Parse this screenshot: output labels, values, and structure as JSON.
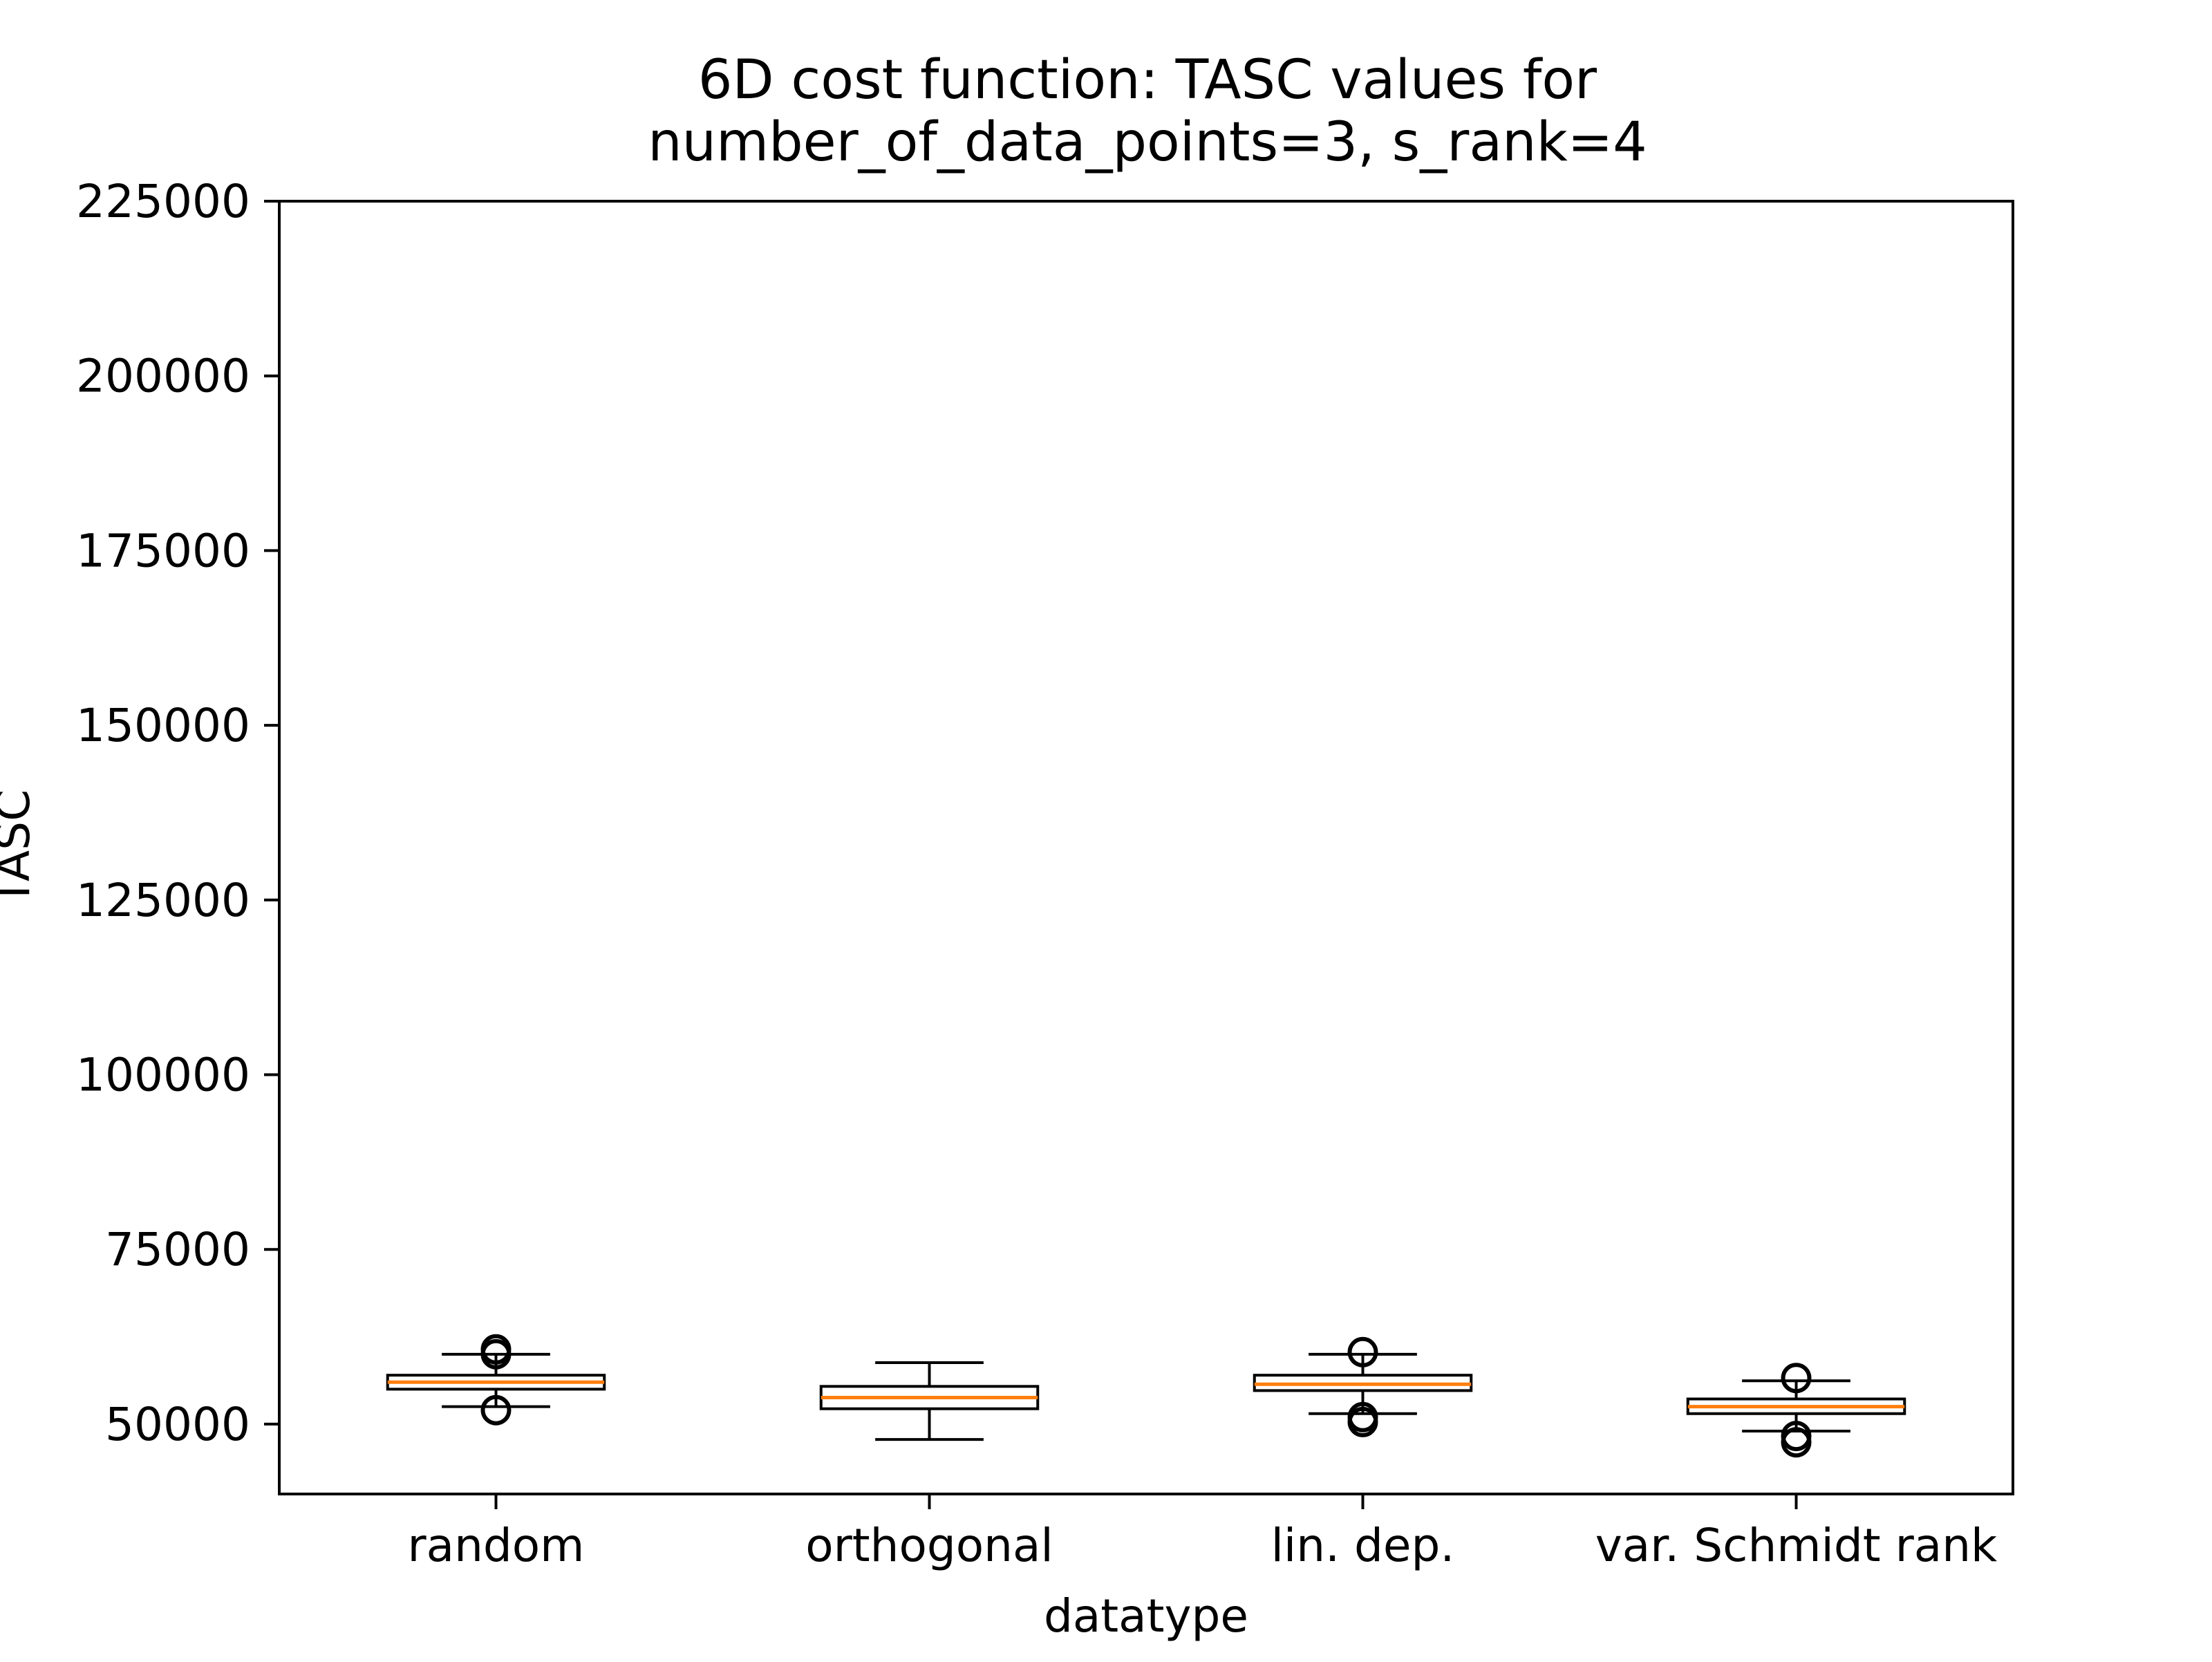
{
  "chart_data": {
    "type": "box",
    "title_line1": "6D cost function: TASC values for",
    "title_line2": "number_of_data_points=3, s_rank=4",
    "xlabel": "datatype",
    "ylabel": "TASC",
    "ylim": [
      40000,
      225000
    ],
    "yticks": [
      50000,
      75000,
      100000,
      125000,
      150000,
      175000,
      200000,
      225000
    ],
    "ytick_labels": [
      "50000",
      "75000",
      "100000",
      "125000",
      "150000",
      "175000",
      "200000",
      "225000"
    ],
    "categories": [
      "random",
      "orthogonal",
      "lin. dep.",
      "var. Schmidt rank"
    ],
    "boxes": [
      {
        "category": "random",
        "whisker_low": 52500,
        "q1": 55000,
        "median": 56000,
        "q3": 57000,
        "whisker_high": 60000,
        "outliers": [
          52000,
          60000,
          60700
        ]
      },
      {
        "category": "orthogonal",
        "whisker_low": 47800,
        "q1": 52200,
        "median": 53800,
        "q3": 55400,
        "whisker_high": 58800,
        "outliers": []
      },
      {
        "category": "lin. dep.",
        "whisker_low": 51500,
        "q1": 54800,
        "median": 55700,
        "q3": 57000,
        "whisker_high": 60000,
        "outliers": [
          50300,
          51000,
          60300
        ]
      },
      {
        "category": "var. Schmidt rank",
        "whisker_low": 49000,
        "q1": 51500,
        "median": 52500,
        "q3": 53600,
        "whisker_high": 56200,
        "outliers": [
          47400,
          48300,
          56600
        ]
      }
    ],
    "grid": false,
    "legend": "none",
    "colors": {
      "box_edge": "#000000",
      "median": "#ff7f0e",
      "background": "#ffffff"
    }
  }
}
